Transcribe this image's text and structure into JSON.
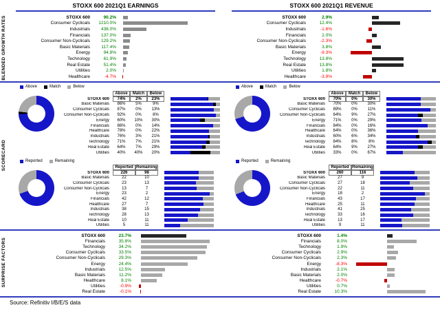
{
  "source_note": "Source: Refinitiv I/B/E/S data",
  "section_labels": {
    "growth": "BLENDED GROWTH RATES",
    "scorecard": "SCORECARD",
    "surprise": "SURPRISE FACTORS"
  },
  "colors": {
    "accent_blue": "#2e3bbd",
    "chart_blue": "#1616c9",
    "match_black": "#000000",
    "below_gray": "#a8a8a8",
    "growth_bar_gray": "#8c8c8c",
    "growth_bar_dark": "#262626",
    "surprise_bar_gray": "#a8a8a8",
    "positive_text": "#008000",
    "negative_text": "#ff0000",
    "negative_bar": "#c00000"
  },
  "chart_data": {
    "type": "dashboard",
    "panels": [
      {
        "title": "STOXX 600 2021Q1 EARNINGS",
        "blended_growth": {
          "type": "bar",
          "unit": "percent",
          "rows": [
            {
              "label": "STOXX 600",
              "value": 90.2
            },
            {
              "label": "Consumer Cyclicals",
              "value": 1210.0
            },
            {
              "label": "Industrials",
              "value": 438.0
            },
            {
              "label": "Financials",
              "value": 137.0
            },
            {
              "label": "Consumer Non-Cyclicals",
              "value": 129.2
            },
            {
              "label": "Basic Materials",
              "value": 117.4
            },
            {
              "label": "Energy",
              "value": 94.8
            },
            {
              "label": "Technology",
              "value": 61.9
            },
            {
              "label": "Real Estate",
              "value": 51.4
            },
            {
              "label": "Utilities",
              "value": 2.0
            },
            {
              "label": "Healthcare",
              "value": -4.7
            }
          ]
        },
        "estimates_scorecard": {
          "type": "donut_and_stacked_bar_table",
          "legend": [
            "Above",
            "Match",
            "Below"
          ],
          "columns": [
            "Above",
            "Match",
            "Below"
          ],
          "rows": [
            {
              "label": "STOXX 600",
              "values": [
                74,
                2,
                23
              ]
            },
            {
              "label": "Basic Materials",
              "values": [
                86,
                5,
                9
              ]
            },
            {
              "label": "Consumer Cyclicals",
              "values": [
                87,
                0,
                13
              ]
            },
            {
              "label": "Consumer Non-Cyclicals",
              "values": [
                92,
                0,
                8
              ]
            },
            {
              "label": "Energy",
              "values": [
                60,
                10,
                30
              ]
            },
            {
              "label": "Financials",
              "values": [
                86,
                0,
                14
              ]
            },
            {
              "label": "Healthcare",
              "values": [
                78,
                0,
                22
              ]
            },
            {
              "label": "Industrials",
              "values": [
                76,
                3,
                21
              ]
            },
            {
              "label": "Technology",
              "values": [
                71,
                7,
                21
              ]
            },
            {
              "label": "Real Estate",
              "values": [
                64,
                7,
                29
              ]
            },
            {
              "label": "Utilities",
              "values": [
                40,
                40,
                20
              ]
            }
          ]
        },
        "reported_scorecard": {
          "type": "donut_and_stacked_bar_table",
          "legend": [
            "Reported",
            "Remaining"
          ],
          "columns": [
            "Reported",
            "Remaining"
          ],
          "rows": [
            {
              "label": "STOXX 600",
              "values": [
                226,
                98
              ]
            },
            {
              "label": "Basic Materials",
              "values": [
                22,
                10
              ]
            },
            {
              "label": "Consumer Cyclicals",
              "values": [
                23,
                13
              ]
            },
            {
              "label": "Consumer Non-Cyclicals",
              "values": [
                13,
                7
              ]
            },
            {
              "label": "Energy",
              "values": [
                23,
                2
              ]
            },
            {
              "label": "Financials",
              "values": [
                42,
                12
              ]
            },
            {
              "label": "Healthcare",
              "values": [
                27,
                7
              ]
            },
            {
              "label": "Industrials",
              "values": [
                38,
                15
              ]
            },
            {
              "label": "Technology",
              "values": [
                28,
                13
              ]
            },
            {
              "label": "Real Estate",
              "values": [
                10,
                11
              ]
            },
            {
              "label": "Utilities",
              "values": [
                5,
                11
              ]
            }
          ]
        },
        "surprise_factors": {
          "type": "bar",
          "unit": "percent",
          "rows": [
            {
              "label": "STOXX 600",
              "value": 23.7
            },
            {
              "label": "Financials",
              "value": 35.8
            },
            {
              "label": "Technology",
              "value": 34.2
            },
            {
              "label": "Consumer Cyclicals",
              "value": 33.5
            },
            {
              "label": "Consumer Non-Cyclicals",
              "value": 29.3
            },
            {
              "label": "Energy",
              "value": 24.4
            },
            {
              "label": "Industrials",
              "value": 12.5
            },
            {
              "label": "Basic Materials",
              "value": 11.2
            },
            {
              "label": "Healthcare",
              "value": 8.1
            },
            {
              "label": "Utilities",
              "value": -0.9
            },
            {
              "label": "Real Estate",
              "value": -0.1
            }
          ]
        }
      },
      {
        "title": "STOXX 600 2021Q1 REVENUE",
        "blended_growth": {
          "type": "bar",
          "unit": "percent",
          "rows": [
            {
              "label": "STOXX 600",
              "value": 2.9
            },
            {
              "label": "Consumer Cyclicals",
              "value": 12.4
            },
            {
              "label": "Industrials",
              "value": -1.6
            },
            {
              "label": "Financials",
              "value": 2.0
            },
            {
              "label": "Consumer Non-Cyclicals",
              "value": -2.3
            },
            {
              "label": "Basic Materials",
              "value": 3.8
            },
            {
              "label": "Energy",
              "value": -9.3
            },
            {
              "label": "Technology",
              "value": 13.8
            },
            {
              "label": "Real Estate",
              "value": 13.8
            },
            {
              "label": "Utilities",
              "value": 1.8
            },
            {
              "label": "Healthcare",
              "value": -3.9
            }
          ]
        },
        "estimates_scorecard": {
          "type": "donut_and_stacked_bar_table",
          "legend": [
            "Above",
            "Match",
            "Below"
          ],
          "columns": [
            "Above",
            "Match",
            "Below"
          ],
          "rows": [
            {
              "label": "STOXX 600",
              "values": [
                70,
                0,
                30
              ]
            },
            {
              "label": "Basic Materials",
              "values": [
                70,
                0,
                30
              ]
            },
            {
              "label": "Consumer Cyclicals",
              "values": [
                89,
                0,
                11
              ]
            },
            {
              "label": "Consumer Non-Cyclicals",
              "values": [
                64,
                9,
                27
              ]
            },
            {
              "label": "Energy",
              "values": [
                71,
                0,
                29
              ]
            },
            {
              "label": "Financials",
              "values": [
                84,
                0,
                16
              ]
            },
            {
              "label": "Healthcare",
              "values": [
                64,
                0,
                36
              ]
            },
            {
              "label": "Industrials",
              "values": [
                60,
                6,
                34
              ]
            },
            {
              "label": "Technology",
              "values": [
                84,
                8,
                8
              ]
            },
            {
              "label": "Real Estate",
              "values": [
                64,
                9,
                27
              ]
            },
            {
              "label": "Utilities",
              "values": [
                33,
                0,
                67
              ]
            }
          ]
        },
        "reported_scorecard": {
          "type": "donut_and_stacked_bar_table",
          "legend": [
            "Reported",
            "Remaining"
          ],
          "columns": [
            "Reported",
            "Remaining"
          ],
          "rows": [
            {
              "label": "STOXX 600",
              "values": [
                260,
                116
              ]
            },
            {
              "label": "Basic Materials",
              "values": [
                27,
                9
              ]
            },
            {
              "label": "Consumer Cyclicals",
              "values": [
                27,
                18
              ]
            },
            {
              "label": "Consumer Non-Cyclicals",
              "values": [
                22,
                11
              ]
            },
            {
              "label": "Energy",
              "values": [
                18,
                2
              ]
            },
            {
              "label": "Financials",
              "values": [
                43,
                17
              ]
            },
            {
              "label": "Healthcare",
              "values": [
                25,
                11
              ]
            },
            {
              "label": "Industrials",
              "values": [
                41,
                25
              ]
            },
            {
              "label": "Technology",
              "values": [
                33,
                16
              ]
            },
            {
              "label": "Real Estate",
              "values": [
                13,
                17
              ]
            },
            {
              "label": "Utilities",
              "values": [
                9,
                11
              ]
            }
          ]
        },
        "surprise_factors": {
          "type": "bar",
          "unit": "percent",
          "rows": [
            {
              "label": "STOXX 600",
              "value": 1.4
            },
            {
              "label": "Financials",
              "value": 8.0
            },
            {
              "label": "Technology",
              "value": 1.9
            },
            {
              "label": "Consumer Cyclicals",
              "value": 2.9
            },
            {
              "label": "Consumer Non-Cyclicals",
              "value": 2.3
            },
            {
              "label": "Energy",
              "value": -8.3
            },
            {
              "label": "Industrials",
              "value": 2.1
            },
            {
              "label": "Basic Materials",
              "value": 2.0
            },
            {
              "label": "Healthcare",
              "value": -0.7
            },
            {
              "label": "Utilities",
              "value": 0.7
            },
            {
              "label": "Real Estate",
              "value": 10.3
            }
          ]
        }
      }
    ]
  }
}
